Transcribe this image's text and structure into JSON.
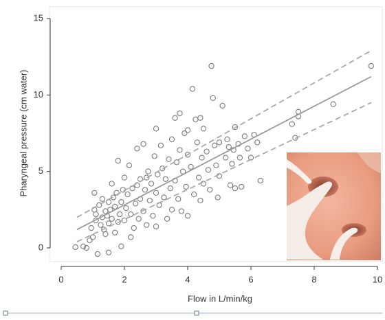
{
  "chart_data": {
    "type": "scatter",
    "x_label": "Flow in L/min/kg",
    "y_label": "Pharyngeal pressure (cm water)",
    "xlim": [
      0,
      10
    ],
    "ylim": [
      0,
      15
    ],
    "xticks": [
      0,
      2,
      4,
      6,
      8,
      10
    ],
    "yticks": [
      0,
      5,
      10,
      15
    ],
    "color": "#7a7a7a",
    "x": [
      0.45,
      0.7,
      0.8,
      0.9,
      0.95,
      1.0,
      1.05,
      1.05,
      1.1,
      1.1,
      1.15,
      1.2,
      1.25,
      1.3,
      1.3,
      1.35,
      1.4,
      1.4,
      1.45,
      1.5,
      1.5,
      1.5,
      1.55,
      1.6,
      1.6,
      1.65,
      1.7,
      1.7,
      1.75,
      1.8,
      1.8,
      1.85,
      1.9,
      1.9,
      1.95,
      2.0,
      2.0,
      2.05,
      2.1,
      2.15,
      2.2,
      2.2,
      2.25,
      2.3,
      2.35,
      2.4,
      2.4,
      2.45,
      2.5,
      2.5,
      2.6,
      2.6,
      2.65,
      2.7,
      2.7,
      2.75,
      2.8,
      2.85,
      2.9,
      2.95,
      3.0,
      3.0,
      3.0,
      3.05,
      3.1,
      3.15,
      3.2,
      3.25,
      3.3,
      3.35,
      3.4,
      3.45,
      3.5,
      3.5,
      3.6,
      3.6,
      3.65,
      3.7,
      3.75,
      3.75,
      3.8,
      3.85,
      3.9,
      3.95,
      4.0,
      4.0,
      4.0,
      4.1,
      4.15,
      4.2,
      4.25,
      4.3,
      4.35,
      4.4,
      4.4,
      4.45,
      4.5,
      4.5,
      4.6,
      4.65,
      4.7,
      4.75,
      4.8,
      4.85,
      4.9,
      4.95,
      5.0,
      5.0,
      5.1,
      5.2,
      5.25,
      5.3,
      5.35,
      5.4,
      5.45,
      5.5,
      5.5,
      5.6,
      5.65,
      5.7,
      5.8,
      5.9,
      6.0,
      6.1,
      6.3,
      6.2,
      7.3,
      7.5,
      7.5,
      8.6,
      9.8,
      7.4
    ],
    "values": [
      0.05,
      0.1,
      0.0,
      0.5,
      1.3,
      0.7,
      3.6,
      2.5,
      2.2,
      1.8,
      -0.4,
      2.8,
      1.5,
      2.0,
      3.2,
      1.2,
      2.4,
      0.9,
      2.1,
      1.6,
      3.0,
      -0.3,
      2.5,
      4.2,
      1.9,
      3.3,
      1.0,
      2.7,
      3.6,
      5.7,
      1.7,
      2.2,
      3.0,
      0.1,
      3.8,
      1.8,
      4.6,
      2.6,
      3.5,
      5.4,
      0.7,
      2.2,
      3.9,
      1.3,
      2.9,
      6.5,
      4.1,
      1.9,
      3.2,
      4.5,
      6.8,
      2.4,
      3.8,
      4.6,
      1.5,
      5.0,
      3.1,
      4.2,
      2.1,
      6.0,
      7.8,
      3.6,
      1.4,
      4.8,
      2.8,
      6.7,
      5.2,
      3.3,
      4.5,
      1.9,
      5.8,
      3.9,
      7.1,
      2.5,
      8.5,
      4.4,
      5.6,
      3.2,
      8.8,
      6.4,
      2.4,
      5.0,
      7.5,
      4.0,
      6.1,
      2.1,
      7.7,
      5.3,
      10.4,
      3.5,
      8.4,
      6.9,
      4.6,
      8.5,
      3.1,
      5.9,
      7.8,
      4.2,
      6.3,
      5.1,
      3.8,
      11.9,
      9.8,
      6.7,
      5.4,
      3.3,
      6.9,
      4.7,
      9.3,
      5.9,
      7.1,
      6.6,
      4.1,
      5.5,
      6.4,
      7.9,
      3.9,
      6.8,
      5.9,
      4.0,
      7.3,
      6.5,
      5.9,
      7.4,
      4.4,
      6.9,
      8.1,
      8.9,
      8.6,
      9.4,
      11.9,
      7.2
    ],
    "fit_lines": [
      {
        "x": [
          0.5,
          9.8
        ],
        "values": [
          1.2,
          11.2
        ],
        "color": "#9a9a9a",
        "dashed": false
      },
      {
        "x": [
          0.5,
          9.8
        ],
        "values": [
          2.0,
          12.9
        ],
        "color": "#a8a8a8",
        "dashed": true
      },
      {
        "x": [
          0.5,
          9.8
        ],
        "values": [
          0.4,
          9.5
        ],
        "color": "#a8a8a8",
        "dashed": true
      }
    ]
  }
}
